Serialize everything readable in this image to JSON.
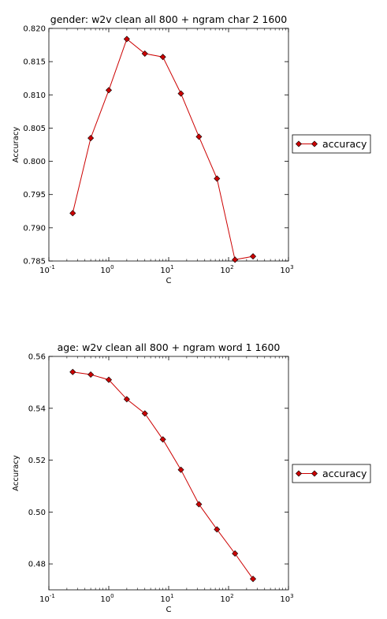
{
  "chart_data": [
    {
      "type": "line",
      "title": "gender: w2v clean all 800 + ngram char 2 1600",
      "xlabel": "C",
      "ylabel": "Accuracy",
      "xscale": "log",
      "xlim": [
        0.1,
        1000
      ],
      "ylim": [
        0.785,
        0.82
      ],
      "xticks": [
        {
          "base": "10",
          "exp": "-1"
        },
        {
          "base": "10",
          "exp": "0"
        },
        {
          "base": "10",
          "exp": "1"
        },
        {
          "base": "10",
          "exp": "2"
        },
        {
          "base": "10",
          "exp": "3"
        }
      ],
      "yticks": [
        "0.785",
        "0.790",
        "0.795",
        "0.800",
        "0.805",
        "0.810",
        "0.815",
        "0.820"
      ],
      "ytick_values": [
        0.785,
        0.79,
        0.795,
        0.8,
        0.805,
        0.81,
        0.815,
        0.82
      ],
      "legend_position": "outside-right",
      "color": "#cc0000",
      "series": [
        {
          "name": "accuracy",
          "x": [
            0.25,
            0.5,
            1,
            2,
            4,
            8,
            16,
            32,
            64,
            128,
            256
          ],
          "y": [
            0.7922,
            0.8035,
            0.8107,
            0.8184,
            0.8162,
            0.8157,
            0.8102,
            0.8037,
            0.7974,
            0.7852,
            0.7857
          ]
        }
      ]
    },
    {
      "type": "line",
      "title": "age: w2v clean all 800 + ngram word 1 1600",
      "xlabel": "C",
      "ylabel": "Accuracy",
      "xscale": "log",
      "xlim": [
        0.1,
        1000
      ],
      "ylim": [
        0.47,
        0.56
      ],
      "xticks": [
        {
          "base": "10",
          "exp": "-1"
        },
        {
          "base": "10",
          "exp": "0"
        },
        {
          "base": "10",
          "exp": "1"
        },
        {
          "base": "10",
          "exp": "2"
        },
        {
          "base": "10",
          "exp": "3"
        }
      ],
      "yticks": [
        "0.48",
        "0.50",
        "0.52",
        "0.54",
        "0.56"
      ],
      "ytick_values": [
        0.48,
        0.5,
        0.52,
        0.54,
        0.56
      ],
      "legend_position": "outside-right",
      "color": "#cc0000",
      "series": [
        {
          "name": "accuracy",
          "x": [
            0.25,
            0.5,
            1,
            2,
            4,
            8,
            16,
            32,
            64,
            128,
            256
          ],
          "y": [
            0.554,
            0.553,
            0.551,
            0.5435,
            0.538,
            0.528,
            0.5163,
            0.503,
            0.4933,
            0.484,
            0.4742
          ]
        }
      ]
    }
  ]
}
